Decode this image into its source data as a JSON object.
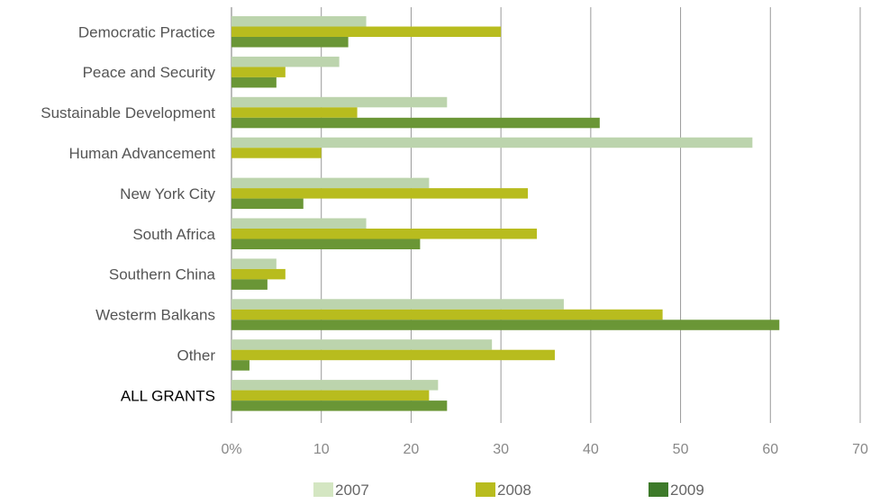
{
  "chart_data": {
    "type": "bar",
    "orientation": "horizontal",
    "categories": [
      "Democratic Practice",
      "Peace and Security",
      "Sustainable Development",
      "Human Advancement",
      "New York City",
      "South Africa",
      "Southern China",
      "Westerm Balkans",
      "Other",
      "ALL GRANTS"
    ],
    "emphasized_category": "ALL GRANTS",
    "series": [
      {
        "name": "2007",
        "color": "#bcd4ad",
        "legend_color": "#d4e6c2",
        "values": [
          15,
          12,
          24,
          58,
          22,
          15,
          5,
          37,
          29,
          23
        ]
      },
      {
        "name": "2008",
        "color": "#b8bc1e",
        "legend_color": "#b8bc1e",
        "values": [
          30,
          6,
          14,
          10,
          33,
          34,
          6,
          48,
          36,
          22
        ]
      },
      {
        "name": "2009",
        "color": "#6a9636",
        "legend_color": "#3d7a2a",
        "values": [
          13,
          5,
          41,
          null,
          8,
          21,
          4,
          61,
          2,
          24
        ]
      }
    ],
    "xlim": [
      0,
      70
    ],
    "x_ticks": [
      0,
      10,
      20,
      30,
      40,
      50,
      60,
      70
    ],
    "x_tick_labels": [
      "0%",
      "10",
      "20",
      "30",
      "40",
      "50",
      "60",
      "70"
    ],
    "grid": "vertical",
    "legend_position": "bottom",
    "title": "",
    "xlabel": "",
    "ylabel": ""
  }
}
